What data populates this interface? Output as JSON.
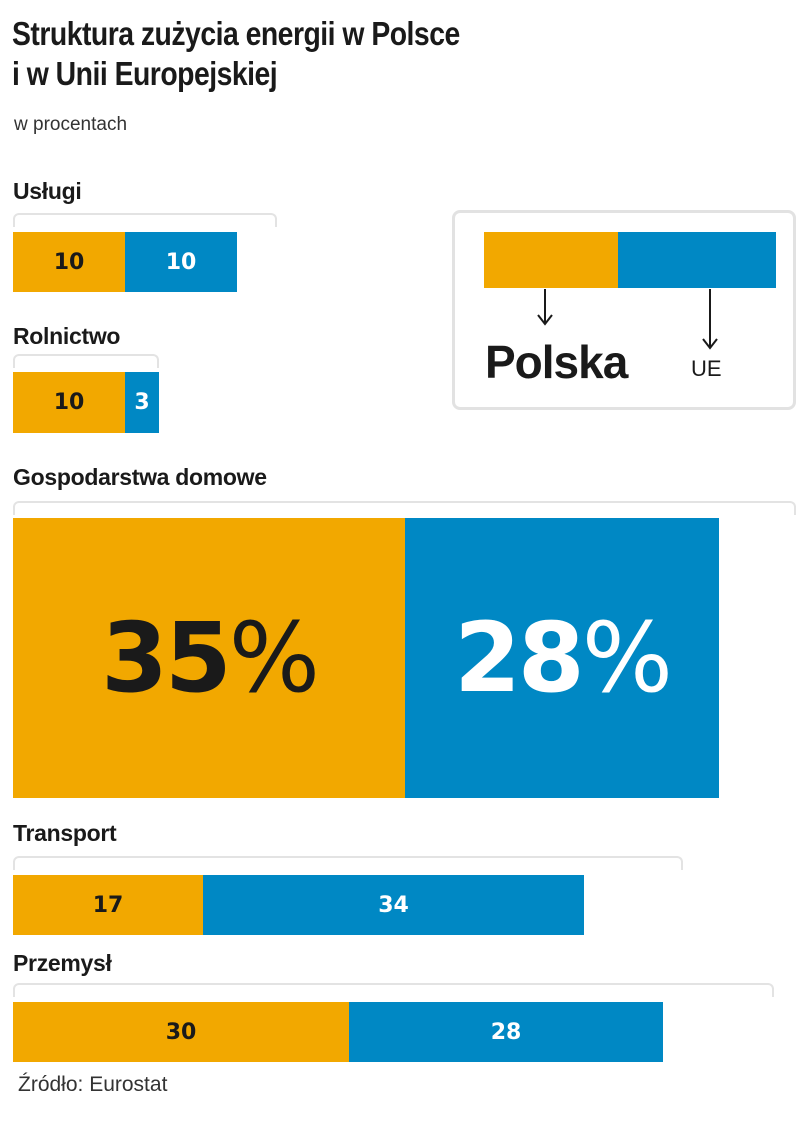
{
  "chart_data": {
    "type": "bar",
    "title_line1": "Struktura zużycia energii w Polsce",
    "title_line2": "i w Unii Europejskiej",
    "subtitle": "w procentach",
    "source": "Źródło: Eurostat",
    "legend": {
      "polska": "Polska",
      "ue": "UE"
    },
    "colors": {
      "polska": "#f2a800",
      "ue": "#0088c4"
    },
    "series": [
      {
        "name": "Polska",
        "values": [
          10,
          10,
          35,
          17,
          30
        ]
      },
      {
        "name": "UE",
        "values": [
          10,
          3,
          28,
          34,
          28
        ]
      }
    ],
    "categories": [
      "Usługi",
      "Rolnictwo",
      "Gospodarstwa domowe",
      "Transport",
      "Przemysł"
    ],
    "labels": {
      "uslugi": {
        "pl": "10",
        "ue": "10"
      },
      "rolnictwo": {
        "pl": "10",
        "ue": "3"
      },
      "gospodarstwa": {
        "pl_num": "35",
        "ue_num": "28",
        "pct": "%"
      },
      "transport": {
        "pl": "17",
        "ue": "34"
      },
      "przemysl": {
        "pl": "30",
        "ue": "28"
      }
    }
  }
}
